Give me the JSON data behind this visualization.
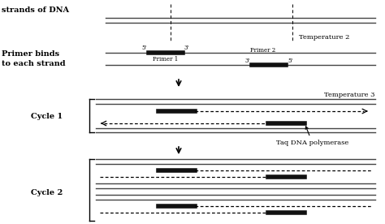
{
  "bg_color": "#ffffff",
  "text_color": "#000000",
  "dna_color": "#444444",
  "primer_color": "#111111",
  "line_color": "#555555",
  "strands_of_dna_label": "strands of DNA",
  "primer_binds_label": "Primer binds\nto each strand",
  "temperature2_label": "Temperature 2",
  "temperature3_label": "Temperature 3",
  "taq_label": "Taq DNA polymerase",
  "cycle1_label": "Cycle 1",
  "cycle2_label": "Cycle 2",
  "primer1_label": "Primer 1",
  "primer2_label": "Primer 2",
  "five_prime_1": "5'",
  "three_prime_1": "3'",
  "three_prime_2": "3'",
  "five_prime_2": "5'"
}
